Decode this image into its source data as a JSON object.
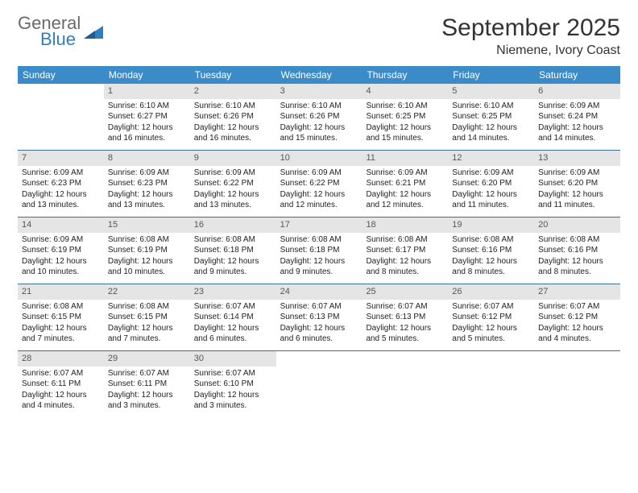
{
  "logo": {
    "text1": "General",
    "text2": "Blue"
  },
  "title": "September 2025",
  "location": "Niemene, Ivory Coast",
  "colors": {
    "header_bg": "#3b8bc8",
    "daynum_bg": "#e5e5e5",
    "week_border": "#3b6f95",
    "logo_gray": "#6a6a6a",
    "logo_blue": "#2f7fbf"
  },
  "daynames": [
    "Sunday",
    "Monday",
    "Tuesday",
    "Wednesday",
    "Thursday",
    "Friday",
    "Saturday"
  ],
  "weeks": [
    [
      {
        "n": "",
        "sr": "",
        "ss": "",
        "dl1": "",
        "dl2": ""
      },
      {
        "n": "1",
        "sr": "Sunrise: 6:10 AM",
        "ss": "Sunset: 6:27 PM",
        "dl1": "Daylight: 12 hours",
        "dl2": "and 16 minutes."
      },
      {
        "n": "2",
        "sr": "Sunrise: 6:10 AM",
        "ss": "Sunset: 6:26 PM",
        "dl1": "Daylight: 12 hours",
        "dl2": "and 16 minutes."
      },
      {
        "n": "3",
        "sr": "Sunrise: 6:10 AM",
        "ss": "Sunset: 6:26 PM",
        "dl1": "Daylight: 12 hours",
        "dl2": "and 15 minutes."
      },
      {
        "n": "4",
        "sr": "Sunrise: 6:10 AM",
        "ss": "Sunset: 6:25 PM",
        "dl1": "Daylight: 12 hours",
        "dl2": "and 15 minutes."
      },
      {
        "n": "5",
        "sr": "Sunrise: 6:10 AM",
        "ss": "Sunset: 6:25 PM",
        "dl1": "Daylight: 12 hours",
        "dl2": "and 14 minutes."
      },
      {
        "n": "6",
        "sr": "Sunrise: 6:09 AM",
        "ss": "Sunset: 6:24 PM",
        "dl1": "Daylight: 12 hours",
        "dl2": "and 14 minutes."
      }
    ],
    [
      {
        "n": "7",
        "sr": "Sunrise: 6:09 AM",
        "ss": "Sunset: 6:23 PM",
        "dl1": "Daylight: 12 hours",
        "dl2": "and 13 minutes."
      },
      {
        "n": "8",
        "sr": "Sunrise: 6:09 AM",
        "ss": "Sunset: 6:23 PM",
        "dl1": "Daylight: 12 hours",
        "dl2": "and 13 minutes."
      },
      {
        "n": "9",
        "sr": "Sunrise: 6:09 AM",
        "ss": "Sunset: 6:22 PM",
        "dl1": "Daylight: 12 hours",
        "dl2": "and 13 minutes."
      },
      {
        "n": "10",
        "sr": "Sunrise: 6:09 AM",
        "ss": "Sunset: 6:22 PM",
        "dl1": "Daylight: 12 hours",
        "dl2": "and 12 minutes."
      },
      {
        "n": "11",
        "sr": "Sunrise: 6:09 AM",
        "ss": "Sunset: 6:21 PM",
        "dl1": "Daylight: 12 hours",
        "dl2": "and 12 minutes."
      },
      {
        "n": "12",
        "sr": "Sunrise: 6:09 AM",
        "ss": "Sunset: 6:20 PM",
        "dl1": "Daylight: 12 hours",
        "dl2": "and 11 minutes."
      },
      {
        "n": "13",
        "sr": "Sunrise: 6:09 AM",
        "ss": "Sunset: 6:20 PM",
        "dl1": "Daylight: 12 hours",
        "dl2": "and 11 minutes."
      }
    ],
    [
      {
        "n": "14",
        "sr": "Sunrise: 6:09 AM",
        "ss": "Sunset: 6:19 PM",
        "dl1": "Daylight: 12 hours",
        "dl2": "and 10 minutes."
      },
      {
        "n": "15",
        "sr": "Sunrise: 6:08 AM",
        "ss": "Sunset: 6:19 PM",
        "dl1": "Daylight: 12 hours",
        "dl2": "and 10 minutes."
      },
      {
        "n": "16",
        "sr": "Sunrise: 6:08 AM",
        "ss": "Sunset: 6:18 PM",
        "dl1": "Daylight: 12 hours",
        "dl2": "and 9 minutes."
      },
      {
        "n": "17",
        "sr": "Sunrise: 6:08 AM",
        "ss": "Sunset: 6:18 PM",
        "dl1": "Daylight: 12 hours",
        "dl2": "and 9 minutes."
      },
      {
        "n": "18",
        "sr": "Sunrise: 6:08 AM",
        "ss": "Sunset: 6:17 PM",
        "dl1": "Daylight: 12 hours",
        "dl2": "and 8 minutes."
      },
      {
        "n": "19",
        "sr": "Sunrise: 6:08 AM",
        "ss": "Sunset: 6:16 PM",
        "dl1": "Daylight: 12 hours",
        "dl2": "and 8 minutes."
      },
      {
        "n": "20",
        "sr": "Sunrise: 6:08 AM",
        "ss": "Sunset: 6:16 PM",
        "dl1": "Daylight: 12 hours",
        "dl2": "and 8 minutes."
      }
    ],
    [
      {
        "n": "21",
        "sr": "Sunrise: 6:08 AM",
        "ss": "Sunset: 6:15 PM",
        "dl1": "Daylight: 12 hours",
        "dl2": "and 7 minutes."
      },
      {
        "n": "22",
        "sr": "Sunrise: 6:08 AM",
        "ss": "Sunset: 6:15 PM",
        "dl1": "Daylight: 12 hours",
        "dl2": "and 7 minutes."
      },
      {
        "n": "23",
        "sr": "Sunrise: 6:07 AM",
        "ss": "Sunset: 6:14 PM",
        "dl1": "Daylight: 12 hours",
        "dl2": "and 6 minutes."
      },
      {
        "n": "24",
        "sr": "Sunrise: 6:07 AM",
        "ss": "Sunset: 6:13 PM",
        "dl1": "Daylight: 12 hours",
        "dl2": "and 6 minutes."
      },
      {
        "n": "25",
        "sr": "Sunrise: 6:07 AM",
        "ss": "Sunset: 6:13 PM",
        "dl1": "Daylight: 12 hours",
        "dl2": "and 5 minutes."
      },
      {
        "n": "26",
        "sr": "Sunrise: 6:07 AM",
        "ss": "Sunset: 6:12 PM",
        "dl1": "Daylight: 12 hours",
        "dl2": "and 5 minutes."
      },
      {
        "n": "27",
        "sr": "Sunrise: 6:07 AM",
        "ss": "Sunset: 6:12 PM",
        "dl1": "Daylight: 12 hours",
        "dl2": "and 4 minutes."
      }
    ],
    [
      {
        "n": "28",
        "sr": "Sunrise: 6:07 AM",
        "ss": "Sunset: 6:11 PM",
        "dl1": "Daylight: 12 hours",
        "dl2": "and 4 minutes."
      },
      {
        "n": "29",
        "sr": "Sunrise: 6:07 AM",
        "ss": "Sunset: 6:11 PM",
        "dl1": "Daylight: 12 hours",
        "dl2": "and 3 minutes."
      },
      {
        "n": "30",
        "sr": "Sunrise: 6:07 AM",
        "ss": "Sunset: 6:10 PM",
        "dl1": "Daylight: 12 hours",
        "dl2": "and 3 minutes."
      },
      {
        "n": "",
        "sr": "",
        "ss": "",
        "dl1": "",
        "dl2": ""
      },
      {
        "n": "",
        "sr": "",
        "ss": "",
        "dl1": "",
        "dl2": ""
      },
      {
        "n": "",
        "sr": "",
        "ss": "",
        "dl1": "",
        "dl2": ""
      },
      {
        "n": "",
        "sr": "",
        "ss": "",
        "dl1": "",
        "dl2": ""
      }
    ]
  ]
}
